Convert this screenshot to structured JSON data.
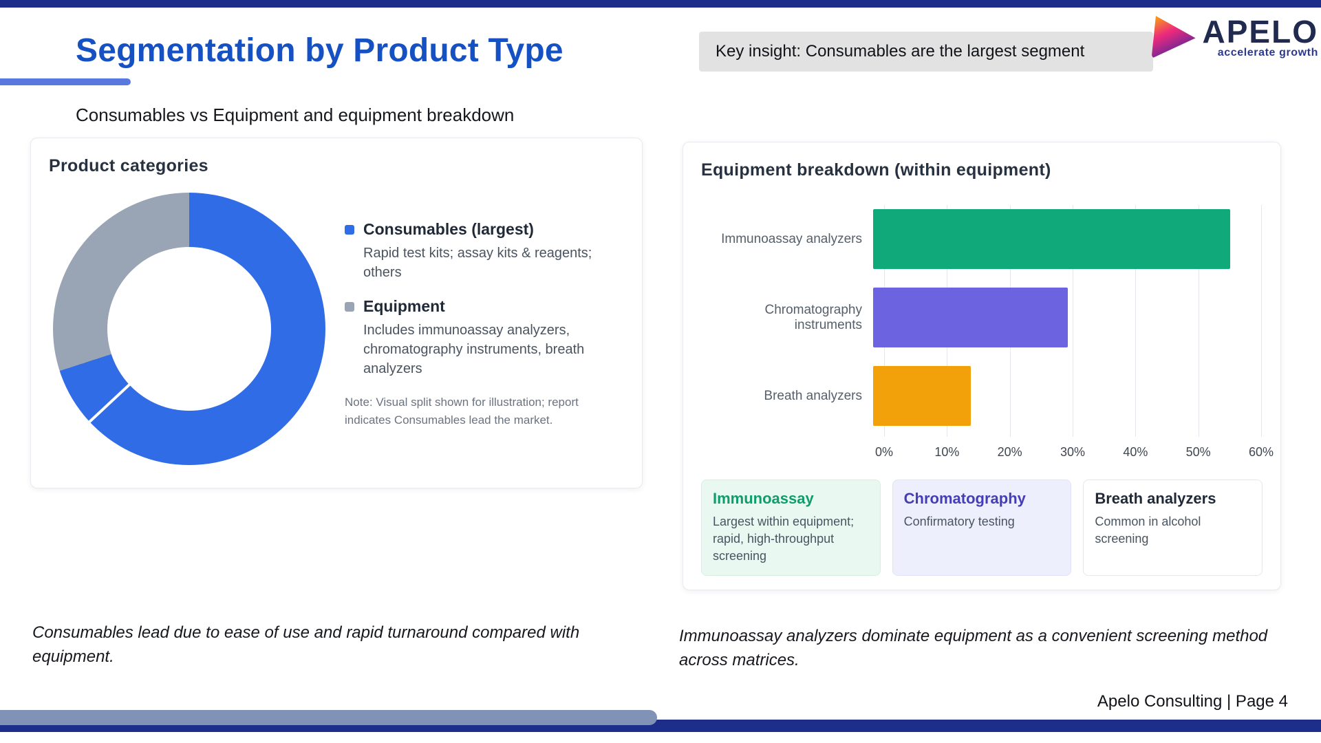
{
  "header": {
    "title": "Segmentation by Product Type",
    "key_insight": "Key insight: Consumables are the largest segment",
    "subtitle": "Consumables vs Equipment and equipment breakdown"
  },
  "logo": {
    "name": "APELO",
    "tagline": "accelerate growth"
  },
  "donut_card": {
    "title": "Product categories",
    "legend": [
      {
        "label": "Consumables (largest)",
        "description": "Rapid test kits; assay kits & reagents; others",
        "color": "#2f6ce6"
      },
      {
        "label": "Equipment",
        "description": "Includes immunoassay analyzers, chromatography instruments, breath analyzers",
        "color": "#99a5b4"
      }
    ],
    "note": "Note: Visual split shown for illustration; report indicates Consumables lead the market."
  },
  "bar_card": {
    "title": "Equipment breakdown (within equipment)",
    "mini_cards": [
      {
        "title": "Immunoassay",
        "description": "Largest within equipment; rapid, high-throughput screening",
        "title_color": "#0f9d68",
        "bg": "#e9f9f1",
        "border": "#d6efe2"
      },
      {
        "title": "Chromatography",
        "description": "Confirmatory testing",
        "title_color": "#453db8",
        "bg": "#edf0fc",
        "border": "#dfe3fa"
      },
      {
        "title": "Breath analyzers",
        "description": "Common in alcohol screening",
        "title_color": "#1f2937",
        "bg": "#ffffff",
        "border": "#e5e7eb"
      }
    ]
  },
  "chart_data": [
    {
      "type": "pie",
      "donut": true,
      "title": "Product categories",
      "labels": [
        "Consumables (largest)",
        "Equipment"
      ],
      "values": [
        70,
        30
      ],
      "colors": [
        "#2f6ce6",
        "#99a5b4"
      ],
      "legend_position": "right"
    },
    {
      "type": "bar",
      "orientation": "horizontal",
      "title": "Equipment breakdown (within equipment)",
      "categories": [
        "Immunoassay analyzers",
        "Chromatography instruments",
        "Breath analyzers"
      ],
      "values": [
        55,
        30,
        15
      ],
      "colors": [
        "#10a97a",
        "#6b63e0",
        "#f2a10b"
      ],
      "xlim": [
        0,
        60
      ],
      "x_ticks": [
        "0%",
        "10%",
        "20%",
        "30%",
        "40%",
        "50%",
        "60%"
      ],
      "grid": true,
      "unit": "%"
    }
  ],
  "takeaways": {
    "left": "Consumables lead due to ease of use and rapid turnaround compared with equipment.",
    "right": "Immunoassay analyzers dominate equipment as a convenient screening method across matrices."
  },
  "footer": {
    "text": "Apelo Consulting | Page 4"
  }
}
